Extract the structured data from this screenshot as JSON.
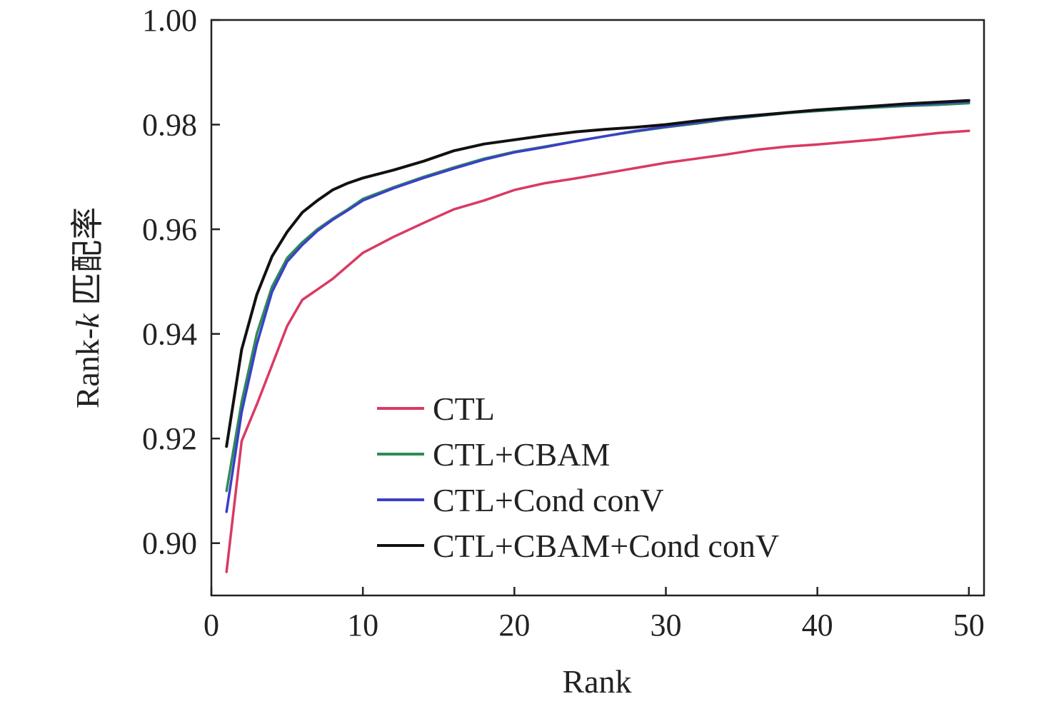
{
  "chart_data": {
    "type": "line",
    "xlabel": "Rank",
    "ylabel_prefix": "Rank-",
    "ylabel_k": "k",
    "ylabel_suffix": " 匹配率",
    "xlim": [
      0,
      51
    ],
    "ylim": [
      0.89,
      1.0
    ],
    "x_ticks": [
      0,
      10,
      20,
      30,
      40,
      50
    ],
    "x_tick_labels": [
      "0",
      "10",
      "20",
      "30",
      "40",
      "50"
    ],
    "y_ticks": [
      0.9,
      0.92,
      0.94,
      0.96,
      0.98,
      1.0
    ],
    "y_tick_labels": [
      "0.90",
      "0.92",
      "0.94",
      "0.96",
      "0.98",
      "1.00"
    ],
    "grid": false,
    "legend_position": "lower-center",
    "x": [
      1,
      2,
      3,
      4,
      5,
      6,
      7,
      8,
      9,
      10,
      12,
      14,
      16,
      18,
      20,
      22,
      24,
      26,
      28,
      30,
      32,
      34,
      36,
      38,
      40,
      42,
      44,
      46,
      48,
      50
    ],
    "series": [
      {
        "name": "CTL",
        "color": "#d93a62",
        "values": [
          0.8945,
          0.9195,
          0.9265,
          0.934,
          0.9415,
          0.9465,
          0.9485,
          0.9505,
          0.953,
          0.9555,
          0.9585,
          0.9612,
          0.9638,
          0.9655,
          0.9675,
          0.9688,
          0.9697,
          0.9707,
          0.9717,
          0.9727,
          0.9735,
          0.9743,
          0.9752,
          0.9758,
          0.9762,
          0.9767,
          0.9772,
          0.9778,
          0.9784,
          0.9788
        ]
      },
      {
        "name": "CTL+CBAM",
        "color": "#2e8b57",
        "values": [
          0.91,
          0.927,
          0.94,
          0.949,
          0.9545,
          0.9575,
          0.96,
          0.962,
          0.9638,
          0.9658,
          0.968,
          0.97,
          0.9718,
          0.9735,
          0.9748,
          0.9758,
          0.9768,
          0.9778,
          0.9787,
          0.9795,
          0.9802,
          0.981,
          0.9816,
          0.9822,
          0.9826,
          0.983,
          0.9833,
          0.9836,
          0.9838,
          0.9841
        ]
      },
      {
        "name": "CTL+Cond conV",
        "color": "#3b3fc8",
        "values": [
          0.906,
          0.925,
          0.938,
          0.948,
          0.9538,
          0.957,
          0.9597,
          0.9618,
          0.9636,
          0.9655,
          0.9678,
          0.9698,
          0.9716,
          0.9733,
          0.9747,
          0.9757,
          0.9768,
          0.9778,
          0.9788,
          0.9796,
          0.9804,
          0.9811,
          0.9817,
          0.9823,
          0.9828,
          0.9831,
          0.9835,
          0.9838,
          0.9841,
          0.9844
        ]
      },
      {
        "name": "CTL+CBAM+Cond conV",
        "color": "#111111",
        "values": [
          0.9185,
          0.937,
          0.9475,
          0.9548,
          0.9595,
          0.9632,
          0.9655,
          0.9675,
          0.9688,
          0.9698,
          0.9713,
          0.973,
          0.975,
          0.9763,
          0.9771,
          0.9779,
          0.9786,
          0.9791,
          0.9795,
          0.98,
          0.9807,
          0.9813,
          0.9818,
          0.9823,
          0.9828,
          0.9832,
          0.9836,
          0.984,
          0.9843,
          0.9846
        ]
      }
    ]
  }
}
